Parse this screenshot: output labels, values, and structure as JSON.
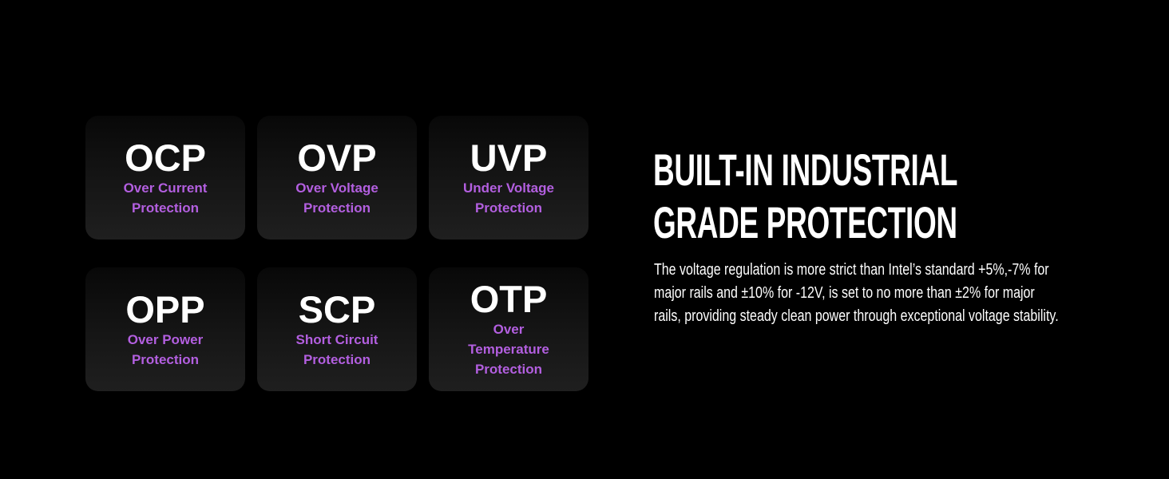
{
  "cards": [
    {
      "abbr": "OCP",
      "label_lines": [
        "Over Current",
        "Protection"
      ]
    },
    {
      "abbr": "OVP",
      "label_lines": [
        "Over Voltage",
        "Protection"
      ]
    },
    {
      "abbr": "UVP",
      "label_lines": [
        "Under Voltage",
        "Protection"
      ]
    },
    {
      "abbr": "OPP",
      "label_lines": [
        "Over Power",
        "Protection"
      ]
    },
    {
      "abbr": "SCP",
      "label_lines": [
        "Short Circuit",
        "Protection"
      ]
    },
    {
      "abbr": "OTP",
      "label_lines": [
        "Over",
        "Temperature",
        "Protection"
      ]
    }
  ],
  "heading": {
    "title_lines": [
      "BUILT-IN INDUSTRIAL",
      "GRADE PROTECTION"
    ],
    "body_lines": [
      "The voltage regulation is more strict than Intel’s standard +5%,-7% for",
      "major rails and ±10% for -12V, is set to no more than ±2% for major",
      "rails, providing steady clean power through exceptional voltage stability."
    ]
  }
}
